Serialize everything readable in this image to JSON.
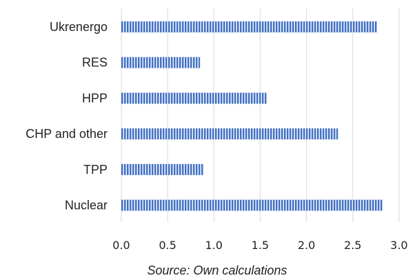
{
  "chart_data": {
    "type": "bar",
    "orientation": "horizontal",
    "categories": [
      "Ukrenergo",
      "RES",
      "HPP",
      "CHP and other",
      "TPP",
      "Nuclear"
    ],
    "values": [
      2.76,
      0.85,
      1.57,
      2.34,
      0.89,
      2.82
    ],
    "xlim": [
      0,
      3.0
    ],
    "xticks": [
      "0.0",
      "0.5",
      "1.0",
      "1.5",
      "2.0",
      "2.5",
      "3.0"
    ],
    "grid": "vertical",
    "bar_color": "#4472c4",
    "bar_pattern": "vertical-stripes"
  },
  "caption": "Source: Own calculations"
}
